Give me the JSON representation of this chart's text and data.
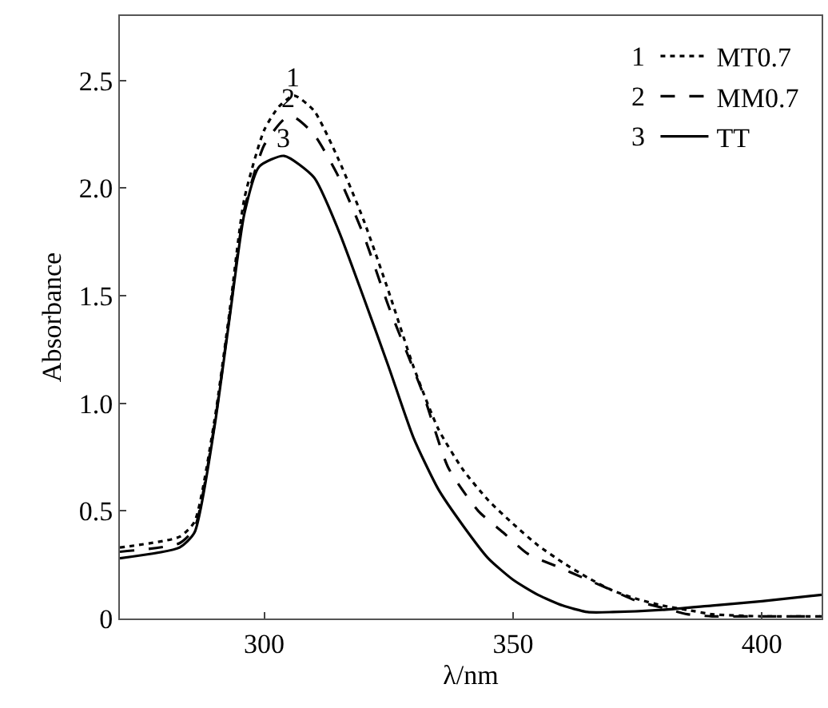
{
  "chart_data": {
    "type": "line",
    "xlabel": "λ/nm",
    "ylabel": "Absorbance",
    "xlim": [
      271,
      412
    ],
    "xticks": [
      300,
      350,
      400
    ],
    "ylim": [
      0,
      2.8
    ],
    "yticks": [
      0,
      0.5,
      {
        "value": 1,
        "label": "1.0"
      },
      1.5,
      {
        "value": 2,
        "label": "2.0"
      },
      2.5
    ],
    "grid": false,
    "legend": "top right",
    "marker": "none",
    "annotations": [
      {
        "text": "1",
        "x": 306,
        "y": 2.43
      },
      {
        "text": "2",
        "x": 305,
        "y": 2.33
      },
      {
        "text": "3",
        "x": 304,
        "y": 2.15
      }
    ],
    "series": [
      {
        "name": "MT0.7",
        "color": "#000000",
        "line_style": "dotted",
        "x": [
          271,
          283,
          286,
          290,
          293,
          296,
          300,
          303,
          306,
          310,
          315,
          320,
          325,
          330,
          335,
          340,
          345,
          350,
          355,
          360,
          365,
          370,
          375,
          380,
          385,
          390,
          400,
          412
        ],
        "values": [
          0.33,
          0.38,
          0.45,
          0.92,
          1.42,
          1.95,
          2.27,
          2.38,
          2.43,
          2.36,
          2.13,
          1.85,
          1.52,
          1.17,
          0.88,
          0.69,
          0.55,
          0.44,
          0.34,
          0.26,
          0.19,
          0.13,
          0.09,
          0.06,
          0.04,
          0.02,
          0.01,
          0.01
        ]
      },
      {
        "name": "MM0.7",
        "color": "#000000",
        "line_style": "dashed",
        "x": [
          271,
          283,
          286,
          290,
          293,
          296,
          300,
          304,
          306,
          310,
          315,
          320,
          325,
          332,
          337,
          343,
          348,
          353,
          359,
          364,
          369,
          375,
          380,
          385,
          390,
          400,
          412
        ],
        "values": [
          0.31,
          0.35,
          0.42,
          0.9,
          1.4,
          1.9,
          2.2,
          2.32,
          2.33,
          2.25,
          2.05,
          1.78,
          1.45,
          1.04,
          0.7,
          0.5,
          0.4,
          0.3,
          0.24,
          0.19,
          0.14,
          0.08,
          0.05,
          0.02,
          0.01,
          0.01,
          0.01
        ]
      },
      {
        "name": "TT",
        "color": "#000000",
        "line_style": "solid",
        "x": [
          271,
          283,
          286,
          290,
          293,
          296,
          299,
          304,
          310,
          315,
          320,
          325,
          330,
          335,
          340,
          345,
          350,
          355,
          360,
          365,
          370,
          380,
          390,
          400,
          412
        ],
        "values": [
          0.28,
          0.33,
          0.4,
          0.89,
          1.39,
          1.88,
          2.1,
          2.15,
          2.05,
          1.8,
          1.49,
          1.17,
          0.84,
          0.6,
          0.43,
          0.28,
          0.18,
          0.11,
          0.06,
          0.03,
          0.03,
          0.04,
          0.06,
          0.08,
          0.11
        ]
      }
    ]
  }
}
